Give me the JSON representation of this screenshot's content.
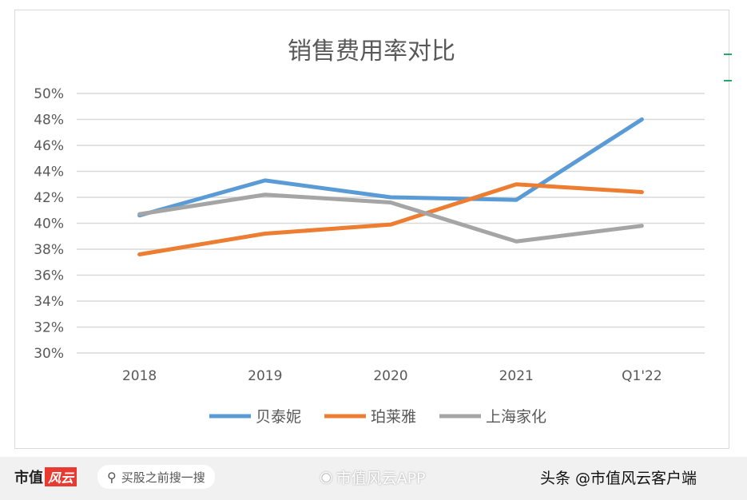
{
  "chart_data": {
    "type": "line",
    "title": "销售费用率对比",
    "categories": [
      "2018",
      "2019",
      "2020",
      "2021",
      "Q1'22"
    ],
    "ylim": [
      30,
      50
    ],
    "yticks": [
      "30%",
      "32%",
      "34%",
      "36%",
      "38%",
      "40%",
      "42%",
      "44%",
      "46%",
      "48%",
      "50%"
    ],
    "grid": true,
    "legend_position": "bottom",
    "series": [
      {
        "name": "贝泰妮",
        "color": "#5b9bd5",
        "values": [
          40.6,
          43.3,
          42.0,
          41.8,
          48.0
        ]
      },
      {
        "name": "珀莱雅",
        "color": "#ed7d31",
        "values": [
          37.6,
          39.2,
          39.9,
          43.0,
          42.4
        ]
      },
      {
        "name": "上海家化",
        "color": "#a5a5a5",
        "values": [
          40.7,
          42.2,
          41.6,
          38.6,
          39.8
        ]
      }
    ]
  },
  "footer": {
    "logo_text": "市值",
    "logo_badge": "风云",
    "search_placeholder": "买股之前搜一搜",
    "weibo_text": "市值风云APP",
    "toutiao_text": "头条 @市值风云客户端"
  }
}
